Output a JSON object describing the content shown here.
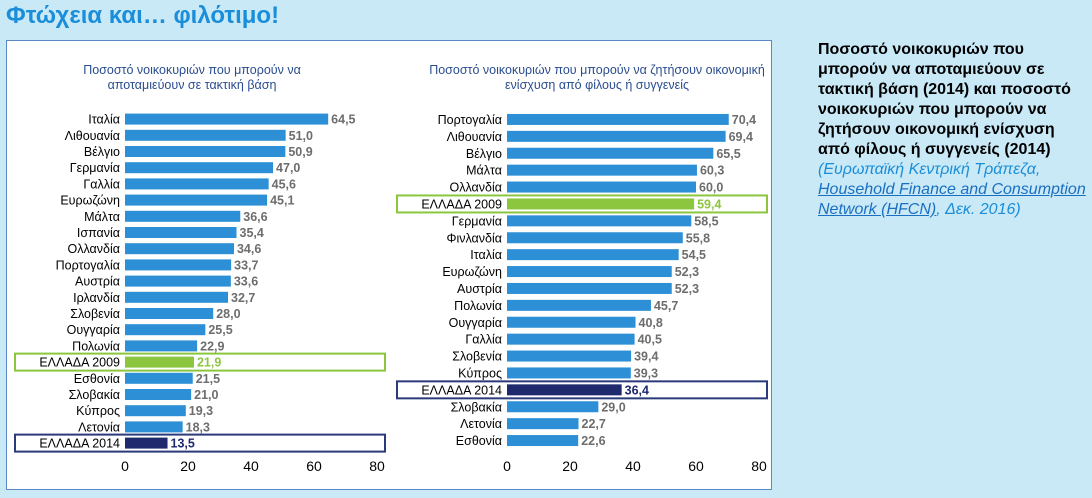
{
  "page": {
    "title": "Φτώχεια και… φιλότιμο!"
  },
  "side": {
    "title": "Ποσοστό νοικοκυριών που μπορούν να αποταμιεύουν σε τακτική βάση (2014) και ποσοστό νοικοκυριών που μπορούν να  ζητήσουν οικονομική ενίσχυση από φίλους ή συγγενείς (2014)",
    "source_prefix": "(Ευρωπαϊκή Κεντρική Τράπεζα, ",
    "source_link": "Household Finance and Consumption Network (HFCN)",
    "source_suffix": ", Δεκ. 2016)"
  },
  "colors": {
    "bar": "#2d8fd5",
    "greece_2009": "#8cc63f",
    "greece_2014": "#1f2a6e",
    "value_text": "#6d6d6d"
  },
  "chart_data": [
    {
      "type": "bar",
      "orientation": "horizontal",
      "title": "Ποσοστό νοικοκυριών που μπορούν να αποταμιεύουν  σε τακτική βάση",
      "xlim": [
        0,
        80
      ],
      "xticks": [
        "0",
        "20",
        "40",
        "60",
        "80"
      ],
      "categories": [
        "Ιταλία",
        "Λιθουανία",
        "Βέλγιο",
        "Γερμανία",
        "Γαλλία",
        "Ευρωζώνη",
        "Μάλτα",
        "Ισπανία",
        "Ολλανδία",
        "Πορτογαλία",
        "Αυστρία",
        "Ιρλανδία",
        "Σλοβενία",
        "Ουγγαρία",
        "Πολωνία",
        "ΕΛΛΑΔΑ 2009",
        "Εσθονία",
        "Σλοβακία",
        "Κύπρος",
        "Λετονία",
        "ΕΛΛΑΔΑ 2014"
      ],
      "values": [
        64.5,
        51.0,
        50.9,
        47.0,
        45.6,
        45.1,
        36.6,
        35.4,
        34.6,
        33.7,
        33.6,
        32.7,
        28.0,
        25.5,
        22.9,
        21.9,
        21.5,
        21.0,
        19.3,
        18.3,
        13.5
      ],
      "labels": [
        "64,5",
        "51,0",
        "50,9",
        "47,0",
        "45,6",
        "45,1",
        "36,6",
        "35,4",
        "34,6",
        "33,7",
        "33,6",
        "32,7",
        "28,0",
        "25,5",
        "22,9",
        "21,9",
        "21,5",
        "21,0",
        "19,3",
        "18,3",
        "13,5"
      ],
      "highlights": {
        "ΕΛΛΑΔΑ 2009": "greece_2009",
        "ΕΛΛΑΔΑ 2014": "greece_2014"
      }
    },
    {
      "type": "bar",
      "orientation": "horizontal",
      "title": "Ποσοστό νοικοκυριών που μπορούν να ζητήσουν οικονομική  ενίσχυση από φίλους ή συγγενείς",
      "xlim": [
        0,
        80
      ],
      "xticks": [
        "0",
        "20",
        "40",
        "60",
        "80"
      ],
      "categories": [
        "Πορτογαλία",
        "Λιθουανία",
        "Βέλγιο",
        "Μάλτα",
        "Ολλανδία",
        "ΕΛΛΑΔΑ 2009",
        "Γερμανία",
        "Φινλανδία",
        "Ιταλία",
        "Ευρωζώνη",
        "Αυστρία",
        "Πολωνία",
        "Ουγγαρία",
        "Γαλλία",
        "Σλοβενία",
        "Κύπρος",
        "ΕΛΛΑΔΑ 2014",
        "Σλοβακία",
        "Λετονία",
        "Εσθονία"
      ],
      "values": [
        70.4,
        69.4,
        65.5,
        60.3,
        60.0,
        59.4,
        58.5,
        55.8,
        54.5,
        52.3,
        52.3,
        45.7,
        40.8,
        40.5,
        39.4,
        39.3,
        36.4,
        29.0,
        22.7,
        22.6
      ],
      "labels": [
        "70,4",
        "69,4",
        "65,5",
        "60,3",
        "60,0",
        "59,4",
        "58,5",
        "55,8",
        "54,5",
        "52,3",
        "52,3",
        "45,7",
        "40,8",
        "40,5",
        "39,4",
        "39,3",
        "36,4",
        "29,0",
        "22,7",
        "22,6"
      ],
      "highlights": {
        "ΕΛΛΑΔΑ 2009": "greece_2009",
        "ΕΛΛΑΔΑ 2014": "greece_2014"
      }
    }
  ]
}
